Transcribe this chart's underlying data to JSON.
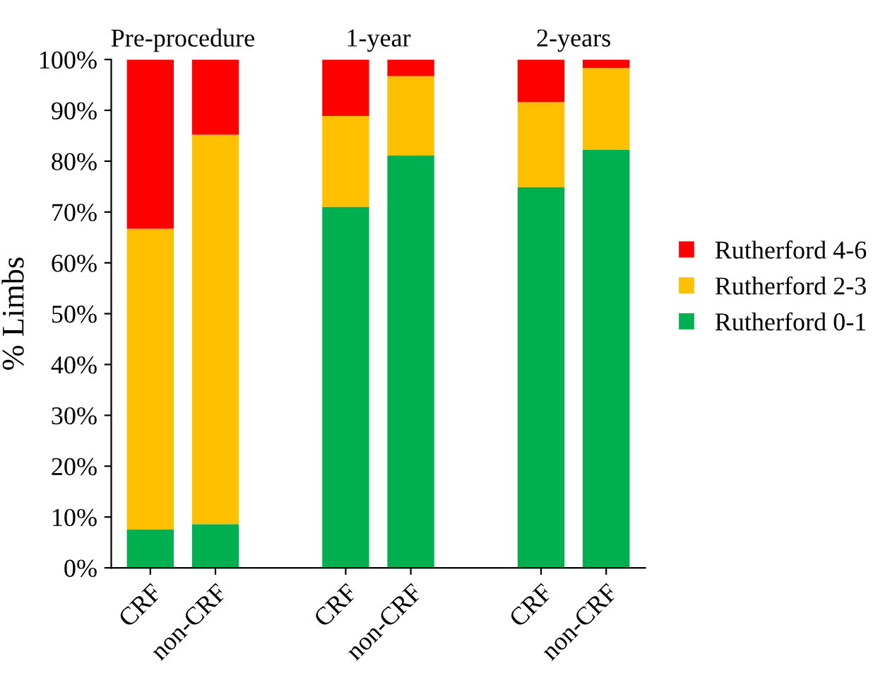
{
  "chart_data": {
    "type": "bar",
    "stacked": true,
    "ylabel": "% Limbs",
    "categories": [
      "CRF",
      "non-CRF",
      null,
      "CRF",
      "non-CRF",
      null,
      "CRF",
      "non-CRF"
    ],
    "series": [
      {
        "name": "Rutherford 0-1",
        "color": "#00b050",
        "values": [
          7.5,
          8.6,
          null,
          71.0,
          81.1,
          null,
          74.9,
          82.2
        ]
      },
      {
        "name": "Rutherford 2-3",
        "color": "#ffc000",
        "values": [
          59.2,
          76.6,
          null,
          17.9,
          15.6,
          null,
          16.7,
          16.1
        ]
      },
      {
        "name": "Rutherford 4-6",
        "color": "#ff0000",
        "values": [
          33.3,
          14.8,
          null,
          11.1,
          3.3,
          null,
          8.4,
          1.7
        ]
      }
    ],
    "annotations": [
      "Pre-procedure",
      "1-year",
      "2-years"
    ],
    "ylim": [
      0,
      100
    ],
    "yticks": [
      {
        "value": 0,
        "label": "0%"
      },
      {
        "value": 10,
        "label": "10%"
      },
      {
        "value": 20,
        "label": "20%"
      },
      {
        "value": 30,
        "label": "30%"
      },
      {
        "value": 40,
        "label": "40%"
      },
      {
        "value": 50,
        "label": "50%"
      },
      {
        "value": 60,
        "label": "60%"
      },
      {
        "value": 70,
        "label": "70%"
      },
      {
        "value": 80,
        "label": "80%"
      },
      {
        "value": 90,
        "label": "90%"
      },
      {
        "value": 100,
        "label": "100%"
      }
    ],
    "legend": "right"
  }
}
